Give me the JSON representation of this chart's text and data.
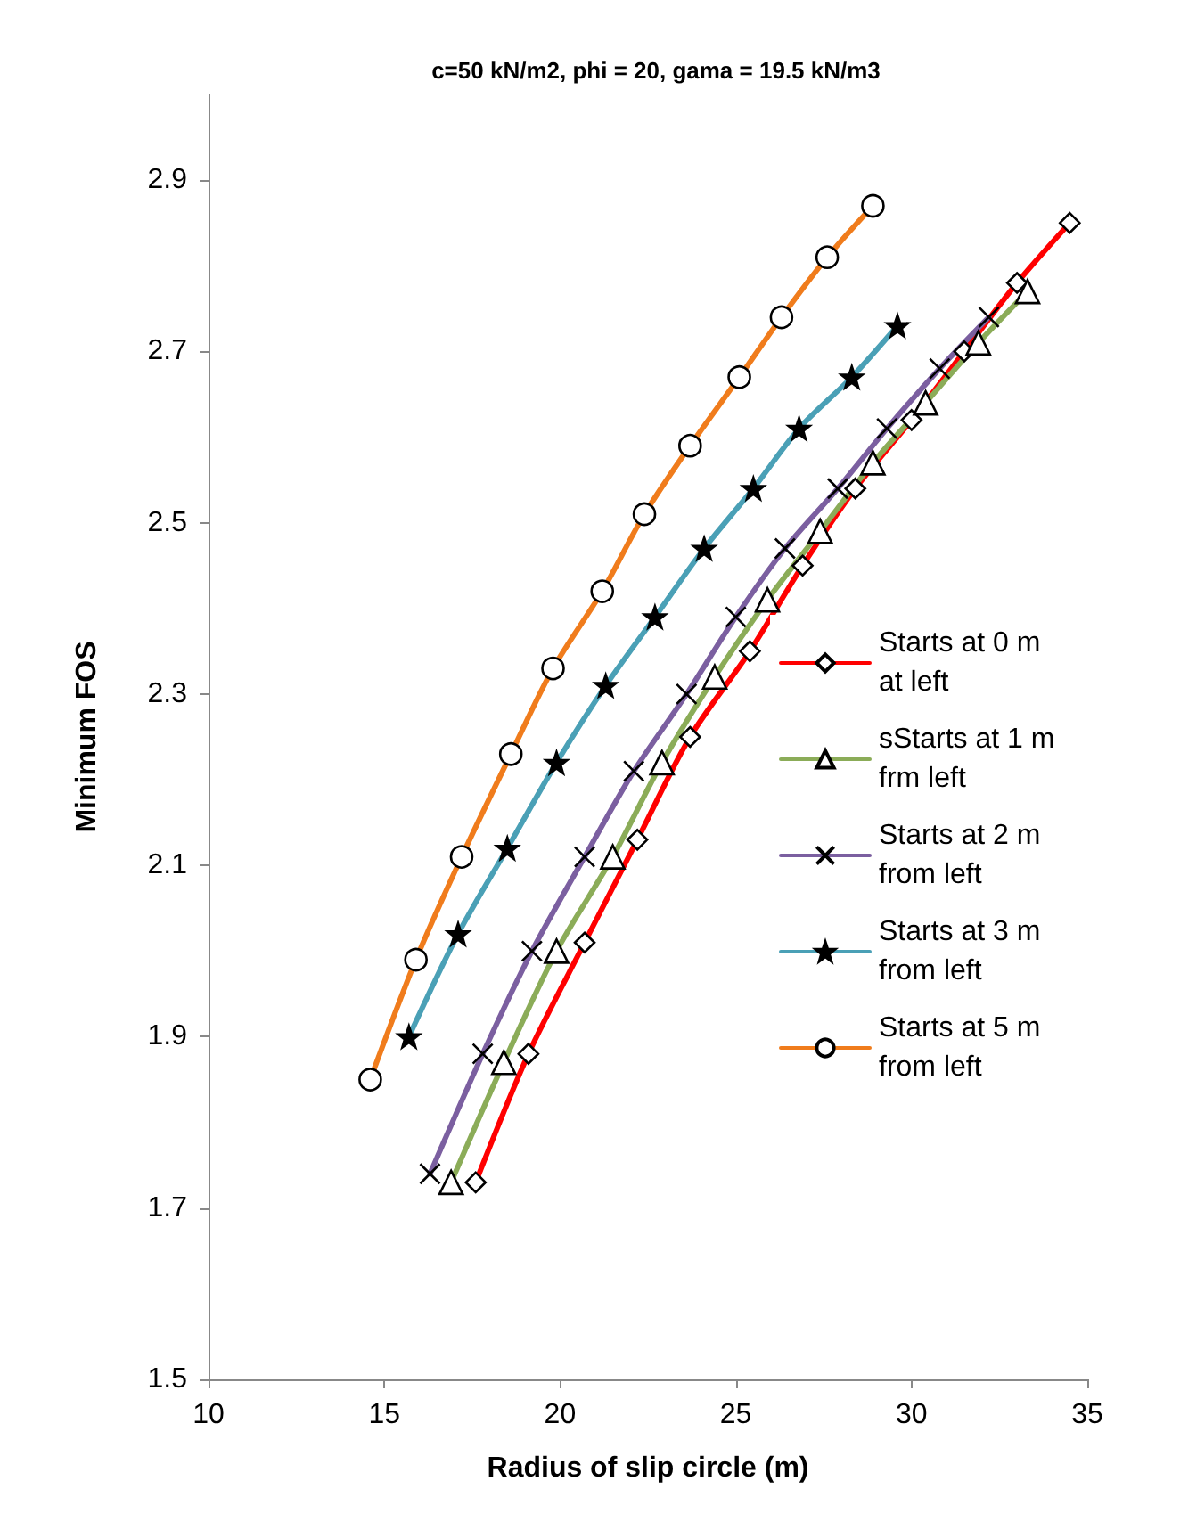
{
  "chart_data": {
    "type": "line",
    "title": "c=50 kN/m2, phi = 20, gama = 19.5 kN/m3",
    "xlabel": "Radius of slip circle (m)",
    "ylabel": "Minimum FOS",
    "xlim": [
      10,
      35
    ],
    "xticks": [
      10,
      15,
      20,
      25,
      30,
      35
    ],
    "ylim": [
      1.5,
      3.0
    ],
    "yticks": [
      1.5,
      1.7,
      1.9,
      2.1,
      2.3,
      2.5,
      2.7,
      2.9
    ],
    "grid": false,
    "legend": "right",
    "series": [
      {
        "name": "Starts at 0 m at left",
        "color": "#ff0000",
        "marker": "diamond",
        "x": [
          17.6,
          19.1,
          20.7,
          22.2,
          23.7,
          25.4,
          26.9,
          28.4,
          30.0,
          31.5,
          33.0,
          34.5
        ],
        "values": [
          1.73,
          1.88,
          2.01,
          2.13,
          2.25,
          2.35,
          2.45,
          2.54,
          2.62,
          2.7,
          2.78,
          2.85
        ]
      },
      {
        "name": "sStarts at 1 m frm left",
        "color": "#8bac58",
        "marker": "triangle",
        "x": [
          16.9,
          18.4,
          19.9,
          21.5,
          22.9,
          24.4,
          25.9,
          27.4,
          28.9,
          30.4,
          31.9,
          33.3
        ],
        "values": [
          1.73,
          1.87,
          2.0,
          2.11,
          2.22,
          2.32,
          2.41,
          2.49,
          2.57,
          2.64,
          2.71,
          2.77
        ]
      },
      {
        "name": "Starts at 2 m from left",
        "color": "#7b5fa0",
        "marker": "cross",
        "x": [
          16.3,
          17.8,
          19.2,
          20.7,
          22.1,
          23.6,
          25.0,
          26.4,
          27.9,
          29.3,
          30.8,
          32.2
        ],
        "values": [
          1.74,
          1.88,
          2.0,
          2.11,
          2.21,
          2.3,
          2.39,
          2.47,
          2.54,
          2.61,
          2.68,
          2.74
        ]
      },
      {
        "name": "Starts at 3 m from left",
        "color": "#4aa0b6",
        "marker": "star",
        "x": [
          15.7,
          17.1,
          18.5,
          19.9,
          21.3,
          22.7,
          24.1,
          25.5,
          26.8,
          28.3,
          29.6
        ],
        "values": [
          1.9,
          2.02,
          2.12,
          2.22,
          2.31,
          2.39,
          2.47,
          2.54,
          2.61,
          2.67,
          2.73
        ]
      },
      {
        "name": "Starts at 5 m from left",
        "color": "#f07c1c",
        "marker": "circle",
        "x": [
          14.6,
          15.9,
          17.2,
          18.6,
          19.8,
          21.2,
          22.4,
          23.7,
          25.1,
          26.3,
          27.6,
          28.9
        ],
        "values": [
          1.85,
          1.99,
          2.11,
          2.23,
          2.33,
          2.42,
          2.51,
          2.59,
          2.67,
          2.74,
          2.81,
          2.87
        ]
      }
    ]
  }
}
